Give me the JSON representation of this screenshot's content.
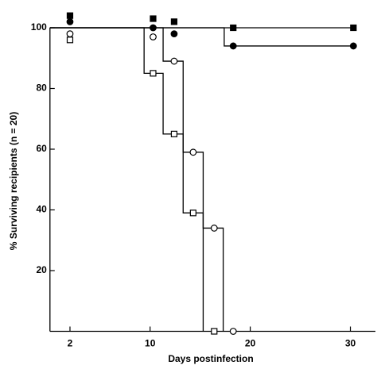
{
  "chart_data": {
    "type": "step",
    "xlabel": "Days postinfection",
    "ylabel": "% Surviving recipients (n = 20)",
    "xlim": [
      0,
      32.5
    ],
    "xticks": [
      2,
      10,
      20,
      30
    ],
    "ylim": [
      0,
      100
    ],
    "yticks": [
      20,
      40,
      60,
      80,
      100
    ],
    "series": [
      {
        "color": "#000000",
        "marker": "square",
        "filled": false,
        "step_x": [
          0,
          9.4,
          9.4,
          11.3,
          11.3,
          13.3,
          13.3,
          15.3,
          15.3
        ],
        "step_values": [
          100,
          100,
          85,
          85,
          65,
          65,
          39,
          39,
          0
        ],
        "x": [
          2,
          10.3,
          12.4,
          14.3,
          16.4
        ],
        "values": [
          96,
          85,
          65,
          39,
          0
        ]
      },
      {
        "color": "#000000",
        "marker": "circle",
        "filled": false,
        "step_x": [
          0,
          11.3,
          11.3,
          13.3,
          13.3,
          15.3,
          15.3,
          17.3,
          17.3
        ],
        "step_values": [
          100,
          100,
          89,
          89,
          59,
          59,
          34,
          34,
          0
        ],
        "x": [
          2,
          10.3,
          12.4,
          14.3,
          16.4,
          18.3
        ],
        "values": [
          98,
          97,
          89,
          59,
          34,
          0
        ]
      },
      {
        "color": "#000000",
        "marker": "square",
        "filled": true,
        "step_x": [
          0,
          30.3
        ],
        "step_values": [
          100,
          100
        ],
        "x": [
          2,
          10.3,
          12.4,
          18.3,
          30.3
        ],
        "values": [
          104,
          103,
          102,
          100,
          100
        ]
      },
      {
        "color": "#000000",
        "marker": "circle",
        "filled": true,
        "step_x": [
          0,
          17.4,
          17.4,
          30.3
        ],
        "step_values": [
          100,
          100,
          94,
          94
        ],
        "x": [
          2,
          10.3,
          12.4,
          18.3,
          30.3
        ],
        "values": [
          102,
          100,
          98,
          94,
          94
        ]
      }
    ]
  }
}
